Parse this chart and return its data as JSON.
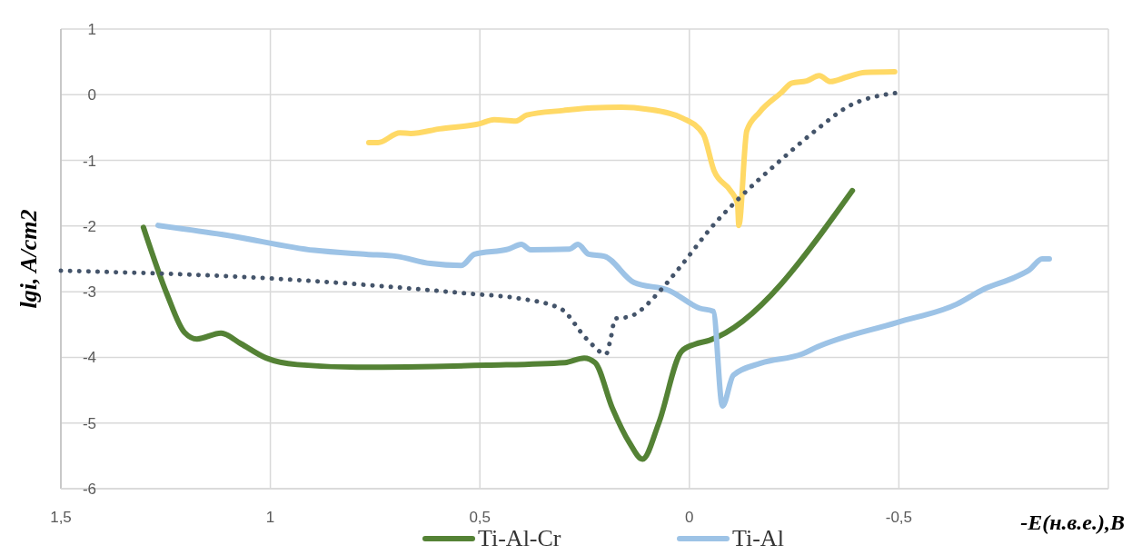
{
  "chart_data": {
    "type": "line",
    "xlabel": "-E(н.в.е.),В",
    "ylabel": "lgi, A/cm2",
    "xlim": [
      1.5,
      -1
    ],
    "xticks": [
      {
        "value": 1.5,
        "label": "1,5"
      },
      1,
      {
        "value": 0.5,
        "label": "0,5"
      },
      0,
      {
        "value": -0.5,
        "label": "-0,5"
      },
      {
        "value": -1,
        "label": null
      }
    ],
    "ylim": [
      -6,
      1
    ],
    "yticks": [
      -6,
      -5,
      -4,
      -3,
      -2,
      -1,
      0,
      1
    ],
    "grid": true,
    "legend": "bottom",
    "marker": "none",
    "series": [
      {
        "name": "Ti-Al-Cr",
        "color": "#548235",
        "x": [
          1.303,
          1.246,
          1.205,
          1.175,
          1.118,
          1.071,
          1.01,
          0.936,
          0.793,
          0.483,
          0.297,
          0.251,
          0.225,
          0.184,
          0.143,
          0.112,
          0.073,
          0.019,
          -0.013,
          -0.048,
          -0.389
        ],
        "values": [
          -2.02,
          -3.05,
          -3.62,
          -3.72,
          -3.63,
          -3.79,
          -4.01,
          -4.11,
          -4.15,
          -4.12,
          -4.08,
          -4.01,
          -4.08,
          -4.77,
          -5.3,
          -5.55,
          -5.0,
          -3.91,
          -3.8,
          -3.74,
          -1.46
        ]
      },
      {
        "name": "Ti-Al",
        "color": "#9dc3e6",
        "x": [
          1.268,
          1.103,
          0.895,
          0.771,
          0.7,
          0.618,
          0.544,
          0.513,
          0.431,
          0.401,
          0.379,
          0.286,
          0.266,
          0.24,
          0.203,
          0.132,
          0.049,
          -0.024,
          -0.057,
          -0.079,
          -0.105,
          -0.17,
          -0.269,
          -0.306,
          -0.495,
          -0.638,
          -0.703,
          -0.777,
          -0.811,
          -0.842,
          -0.859
        ],
        "values": [
          -1.99,
          -2.14,
          -2.37,
          -2.43,
          -2.46,
          -2.57,
          -2.6,
          -2.43,
          -2.35,
          -2.28,
          -2.36,
          -2.35,
          -2.28,
          -2.43,
          -2.46,
          -2.86,
          -2.98,
          -3.25,
          -3.3,
          -4.74,
          -4.27,
          -4.09,
          -3.95,
          -3.84,
          -3.47,
          -3.19,
          -2.96,
          -2.78,
          -2.67,
          -2.5,
          -2.5
        ]
      },
      {
        "color": "#ffd966",
        "x": [
          0.765,
          0.743,
          0.691,
          0.665,
          0.596,
          0.5,
          0.466,
          0.414,
          0.388,
          0.301,
          0.232,
          0.162,
          0.101,
          0.015,
          -0.033,
          -0.059,
          -0.098,
          -0.115,
          -0.118,
          -0.137,
          -0.167,
          -0.219,
          -0.245,
          -0.28,
          -0.31,
          -0.337,
          -0.376,
          -0.419,
          -0.49
        ],
        "values": [
          -0.73,
          -0.73,
          -0.58,
          -0.59,
          -0.52,
          -0.44,
          -0.38,
          -0.4,
          -0.31,
          -0.24,
          -0.2,
          -0.19,
          -0.22,
          -0.36,
          -0.6,
          -1.16,
          -1.46,
          -1.66,
          -1.99,
          -0.55,
          -0.27,
          0.03,
          0.18,
          0.21,
          0.29,
          0.2,
          0.27,
          0.34,
          0.35
        ]
      },
      {
        "color": "#44546a",
        "line_style": "dotted",
        "x": [
          1.5,
          1.019,
          0.524,
          0.409,
          0.307,
          0.245,
          0.199,
          0.188,
          0.177,
          0.143,
          0.069,
          0.028,
          -0.065,
          -0.115,
          -0.219,
          -0.306,
          -0.376,
          -0.497
        ],
        "values": [
          -2.68,
          -2.79,
          -3.03,
          -3.1,
          -3.26,
          -3.72,
          -3.95,
          -3.72,
          -3.41,
          -3.38,
          -2.98,
          -2.67,
          -1.93,
          -1.6,
          -0.99,
          -0.52,
          -0.19,
          0.03
        ]
      }
    ]
  }
}
